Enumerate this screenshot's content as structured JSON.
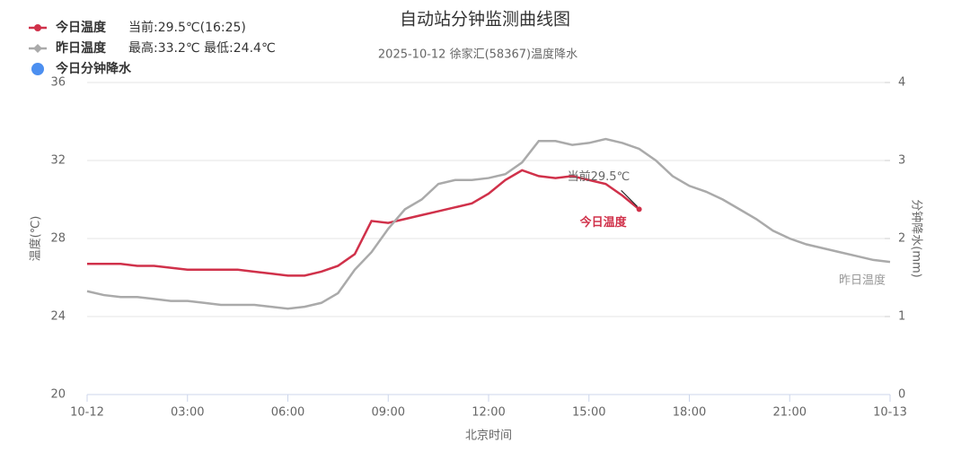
{
  "chart_data": {
    "type": "line",
    "title": "自动站分钟监测曲线图",
    "subtitle": "2025-10-12 徐家汇(58367)温度降水",
    "x_label": "北京时间",
    "y_label": "温度(℃)",
    "y2_label": "分钟降水(mm)",
    "xlim": [
      0,
      24
    ],
    "xticks": [
      {
        "value": 0,
        "label": "10-12"
      },
      {
        "value": 3,
        "label": "03:00"
      },
      {
        "value": 6,
        "label": "06:00"
      },
      {
        "value": 9,
        "label": "09:00"
      },
      {
        "value": 12,
        "label": "12:00"
      },
      {
        "value": 15,
        "label": "15:00"
      },
      {
        "value": 18,
        "label": "18:00"
      },
      {
        "value": 21,
        "label": "21:00"
      },
      {
        "value": 24,
        "label": "10-13"
      }
    ],
    "ylim": [
      20,
      36
    ],
    "yticks": [
      20,
      24,
      28,
      32,
      36
    ],
    "y2lim": [
      0,
      4
    ],
    "y2ticks": [
      0,
      1,
      2,
      3,
      4
    ],
    "grid": true,
    "x": [
      0,
      0.5,
      1,
      1.5,
      2,
      2.5,
      3,
      3.5,
      4,
      4.5,
      5,
      5.5,
      6,
      6.5,
      7,
      7.5,
      8,
      8.5,
      9,
      9.5,
      10,
      10.5,
      11,
      11.5,
      12,
      12.5,
      13,
      13.5,
      14,
      14.5,
      15,
      15.5,
      16,
      16.5,
      17,
      17.5,
      18,
      18.5,
      19,
      19.5,
      20,
      20.5,
      21,
      21.5,
      22,
      22.5,
      23,
      23.5,
      24
    ],
    "series": [
      {
        "name": "今日温度",
        "note": "当前:29.5℃(16:25)",
        "color": "#d0314a",
        "end_label": "今日温度",
        "values": [
          26.7,
          26.7,
          26.7,
          26.6,
          26.6,
          26.5,
          26.4,
          26.4,
          26.4,
          26.4,
          26.3,
          26.2,
          26.1,
          26.1,
          26.3,
          26.6,
          27.2,
          28.9,
          28.8,
          29.0,
          29.2,
          29.4,
          29.6,
          29.8,
          30.3,
          31.0,
          31.5,
          31.2,
          31.1,
          31.2,
          31.0,
          30.8,
          30.2,
          29.5,
          null,
          null,
          null,
          null,
          null,
          null,
          null,
          null,
          null,
          null,
          null,
          null,
          null,
          null,
          null
        ]
      },
      {
        "name": "昨日温度",
        "note": "最高:33.2℃ 最低:24.4℃",
        "color": "#aaaaaa",
        "end_label": "昨日温度",
        "values": [
          25.3,
          25.1,
          25.0,
          25.0,
          24.9,
          24.8,
          24.8,
          24.7,
          24.6,
          24.6,
          24.6,
          24.5,
          24.4,
          24.5,
          24.7,
          25.2,
          26.4,
          27.3,
          28.5,
          29.5,
          30.0,
          30.8,
          31.0,
          31.0,
          31.1,
          31.3,
          31.9,
          33.0,
          33.0,
          32.8,
          32.9,
          33.1,
          32.9,
          32.6,
          32.0,
          31.2,
          30.7,
          30.4,
          30.0,
          29.5,
          29.0,
          28.4,
          28.0,
          27.7,
          27.5,
          27.3,
          27.1,
          26.9,
          26.8
        ]
      },
      {
        "name": "今日分钟降水",
        "color": "#4c8ff0",
        "axis": "y2",
        "values": [
          null,
          null,
          null,
          null,
          null,
          null,
          null,
          null,
          null,
          null,
          null,
          null,
          null,
          null,
          null,
          null,
          null,
          null,
          null,
          null,
          null,
          null,
          null,
          null,
          null,
          null,
          null,
          null,
          null,
          null,
          null,
          null,
          null,
          null,
          null,
          null,
          null,
          null,
          null,
          null,
          null,
          null,
          null,
          null,
          null,
          null,
          null,
          null,
          null
        ]
      }
    ],
    "annotation": "当前29.5℃"
  }
}
